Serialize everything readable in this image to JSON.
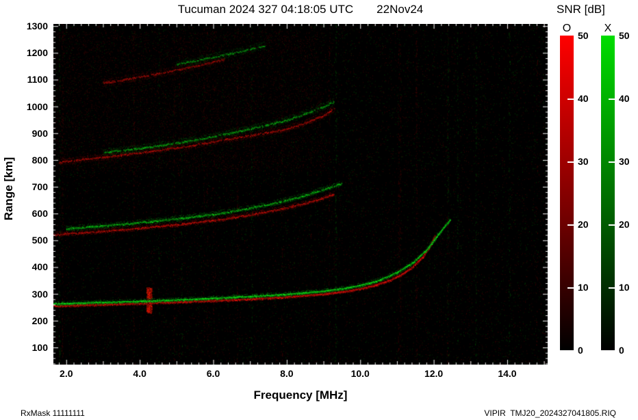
{
  "header": {
    "title": "Tucuman 2024 327 04:18:05 UTC",
    "date": "22Nov24"
  },
  "colorbar": {
    "title": "SNR [dB]",
    "min": 0,
    "max": 50,
    "ticks": [
      0,
      10,
      20,
      30,
      40,
      50
    ],
    "bars": [
      {
        "label": "O",
        "color_top": "#ff0000",
        "color_mid": "#7a0000",
        "color_bottom": "#000000"
      },
      {
        "label": "X",
        "color_top": "#00dd00",
        "color_mid": "#006600",
        "color_bottom": "#000000"
      }
    ]
  },
  "axes": {
    "x_label": "Frequency [MHz]",
    "y_label": "Range [km]",
    "x_range": [
      1.65,
      15.1
    ],
    "y_range": [
      36,
      1308
    ],
    "x_ticks": [
      {
        "v": 2,
        "label": "2.0"
      },
      {
        "v": 4,
        "label": "4.0"
      },
      {
        "v": 6,
        "label": "6.0"
      },
      {
        "v": 8,
        "label": "8.0"
      },
      {
        "v": 10,
        "label": "10.0"
      },
      {
        "v": 12,
        "label": "12.0"
      },
      {
        "v": 14,
        "label": "14.0"
      }
    ],
    "y_ticks": [
      100,
      200,
      300,
      400,
      500,
      600,
      700,
      800,
      900,
      1000,
      1100,
      1200,
      1300
    ]
  },
  "footer": {
    "left": "RxMask 11111111",
    "right": "VIPIR  TMJ20_2024327041805.RIQ"
  },
  "chart_data": {
    "type": "heatmap",
    "title": "Tucuman 2024 327 04:18:05 UTC 22Nov24 — VIPIR ionogram, SNR [dB] 0-50, O-mode (red) and X-mode (green)",
    "xlabel": "Frequency [MHz]",
    "ylabel": "Range [km]",
    "xlim": [
      1.65,
      15.1
    ],
    "ylim": [
      36,
      1308
    ],
    "legend": {
      "O": "O-mode echo trace (red colorbar 0-50 dB)",
      "X": "X-mode echo trace (green colorbar 0-50 dB)"
    },
    "series": [
      {
        "name": "1-hop F-layer O-mode",
        "mode": "O",
        "amp": 1.0,
        "f": [
          1.65,
          2.0,
          2.5,
          3.0,
          3.5,
          4.0,
          4.5,
          5.0,
          5.5,
          6.0,
          6.5,
          7.0,
          7.5,
          8.0,
          8.5,
          9.0,
          9.5,
          10.0,
          10.4,
          10.8,
          11.1,
          11.4,
          11.7,
          11.9,
          12.05
        ],
        "r": [
          257,
          258,
          260,
          262,
          264,
          266,
          269,
          271,
          274,
          276,
          279,
          282,
          286,
          290,
          295,
          301,
          309,
          320,
          334,
          352,
          372,
          400,
          440,
          480,
          525
        ]
      },
      {
        "name": "1-hop F-layer X-mode",
        "mode": "X",
        "amp": 0.9,
        "f": [
          1.65,
          2.0,
          3.0,
          4.0,
          5.0,
          6.0,
          7.0,
          8.0,
          9.0,
          9.5,
          10.0,
          10.5,
          11.0,
          11.4,
          11.8,
          12.1,
          12.3,
          12.45
        ],
        "r": [
          265,
          266,
          270,
          274,
          279,
          285,
          292,
          300,
          312,
          321,
          333,
          352,
          382,
          415,
          465,
          520,
          555,
          580
        ]
      },
      {
        "name": "2-hop O-mode",
        "mode": "O",
        "amp": 0.75,
        "f": [
          1.65,
          2.0,
          3.0,
          4.0,
          5.0,
          6.0,
          6.5,
          7.0,
          7.5,
          8.0,
          8.5,
          9.0,
          9.3
        ],
        "r": [
          522,
          526,
          536,
          547,
          560,
          576,
          586,
          597,
          610,
          624,
          640,
          660,
          676
        ]
      },
      {
        "name": "2-hop X-mode",
        "mode": "X",
        "amp": 0.7,
        "f": [
          2.0,
          3.0,
          4.0,
          5.0,
          6.0,
          6.5,
          7.0,
          7.5,
          8.0,
          8.5,
          9.0,
          9.5
        ],
        "r": [
          545,
          556,
          568,
          582,
          599,
          610,
          622,
          636,
          652,
          670,
          692,
          715
        ]
      },
      {
        "name": "3-hop O-mode",
        "mode": "O",
        "amp": 0.55,
        "f": [
          1.8,
          2.5,
          3.5,
          4.5,
          5.5,
          6.5,
          7.5,
          8.0,
          8.5,
          9.0,
          9.3
        ],
        "r": [
          793,
          805,
          820,
          838,
          858,
          882,
          905,
          918,
          940,
          968,
          995
        ]
      },
      {
        "name": "3-hop X-mode",
        "mode": "X",
        "amp": 0.4,
        "f": [
          3.0,
          4.0,
          5.0,
          6.0,
          7.0,
          8.0,
          8.8,
          9.3
        ],
        "r": [
          830,
          845,
          865,
          890,
          918,
          950,
          990,
          1020
        ]
      },
      {
        "name": "4-hop O-mode",
        "mode": "O",
        "amp": 0.3,
        "f": [
          3.0,
          3.5,
          4.0,
          4.5,
          5.0,
          5.5,
          6.0,
          6.3
        ],
        "r": [
          1090,
          1100,
          1112,
          1124,
          1138,
          1152,
          1168,
          1178
        ]
      },
      {
        "name": "4-hop X-mode",
        "mode": "X",
        "amp": 0.25,
        "f": [
          5.0,
          5.5,
          6.0,
          6.5,
          7.0,
          7.4
        ],
        "r": [
          1160,
          1172,
          1186,
          1200,
          1216,
          1230
        ]
      }
    ],
    "rfi": [
      {
        "f": 4.25,
        "r0": 230,
        "r1": 325
      }
    ]
  }
}
